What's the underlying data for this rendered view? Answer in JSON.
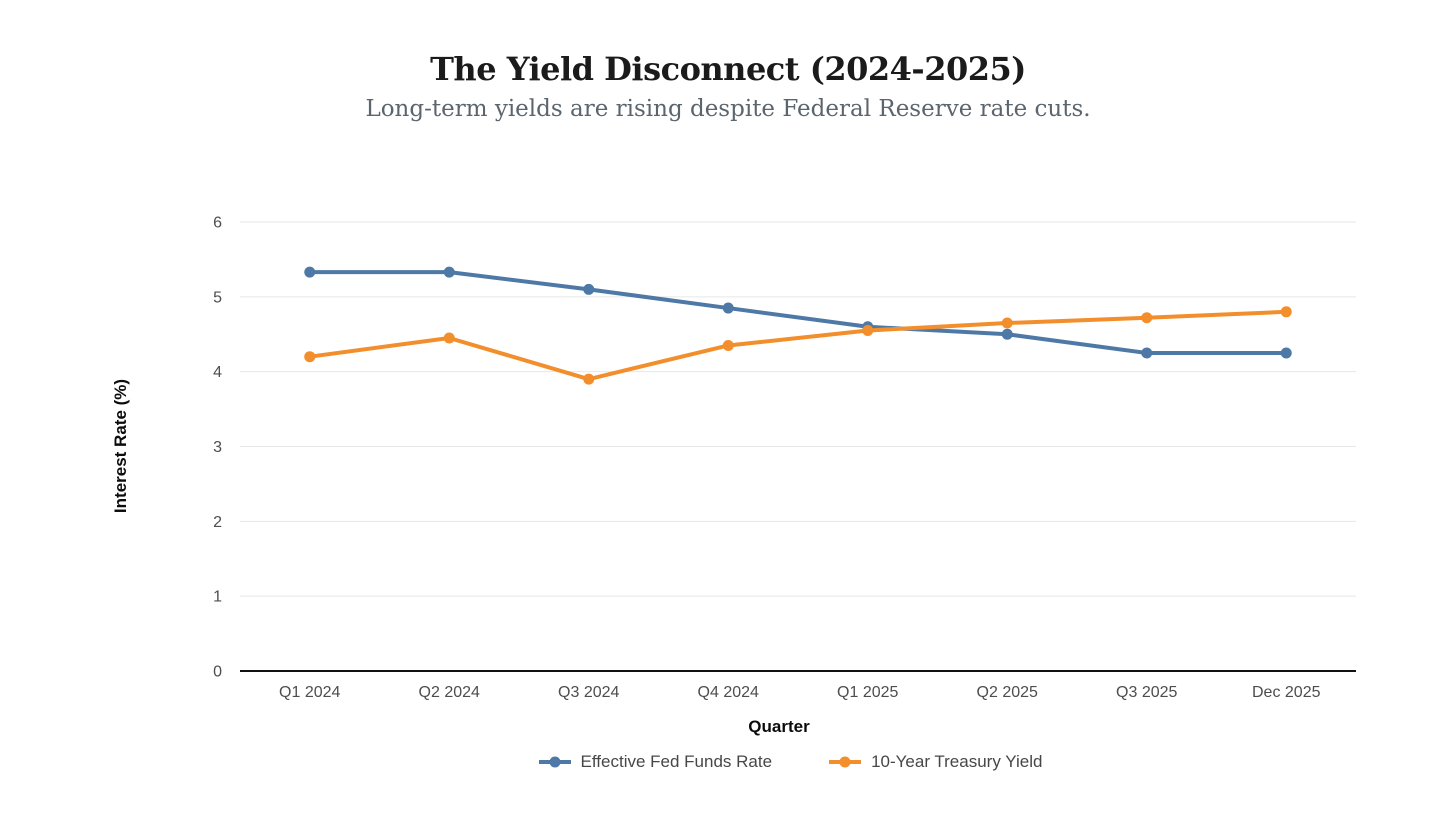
{
  "header": {
    "title": "The Yield Disconnect (2024-2025)",
    "subtitle": "Long-term yields are rising despite Federal Reserve rate cuts."
  },
  "chart_data": {
    "type": "line",
    "categories": [
      "Q1 2024",
      "Q2 2024",
      "Q3 2024",
      "Q4 2024",
      "Q1 2025",
      "Q2 2025",
      "Q3 2025",
      "Dec 2025"
    ],
    "series": [
      {
        "name": "Effective Fed Funds Rate",
        "color": "#4e79a7",
        "values": [
          5.33,
          5.33,
          5.1,
          4.85,
          4.6,
          4.5,
          4.25,
          4.25
        ]
      },
      {
        "name": "10-Year Treasury Yield",
        "color": "#f28e2b",
        "values": [
          4.2,
          4.45,
          3.9,
          4.35,
          4.55,
          4.65,
          4.72,
          4.8
        ]
      }
    ],
    "xlabel": "Quarter",
    "ylabel": "Interest Rate (%)",
    "ylim": [
      0,
      6
    ],
    "yticks": [
      0,
      1,
      2,
      3,
      4,
      5,
      6
    ],
    "grid": "horizontal gridlines only, no left spine",
    "legend_position": "bottom center",
    "marker": "filled circle on each data point"
  },
  "colors": {
    "background": "#ffffff",
    "gridline": "#e7e7e7",
    "axis_line": "#111111",
    "tick_text": "#4d4d4d",
    "title_text": "#1b1b1b",
    "subtitle_text": "#5b656e",
    "legend_text": "#474747"
  }
}
